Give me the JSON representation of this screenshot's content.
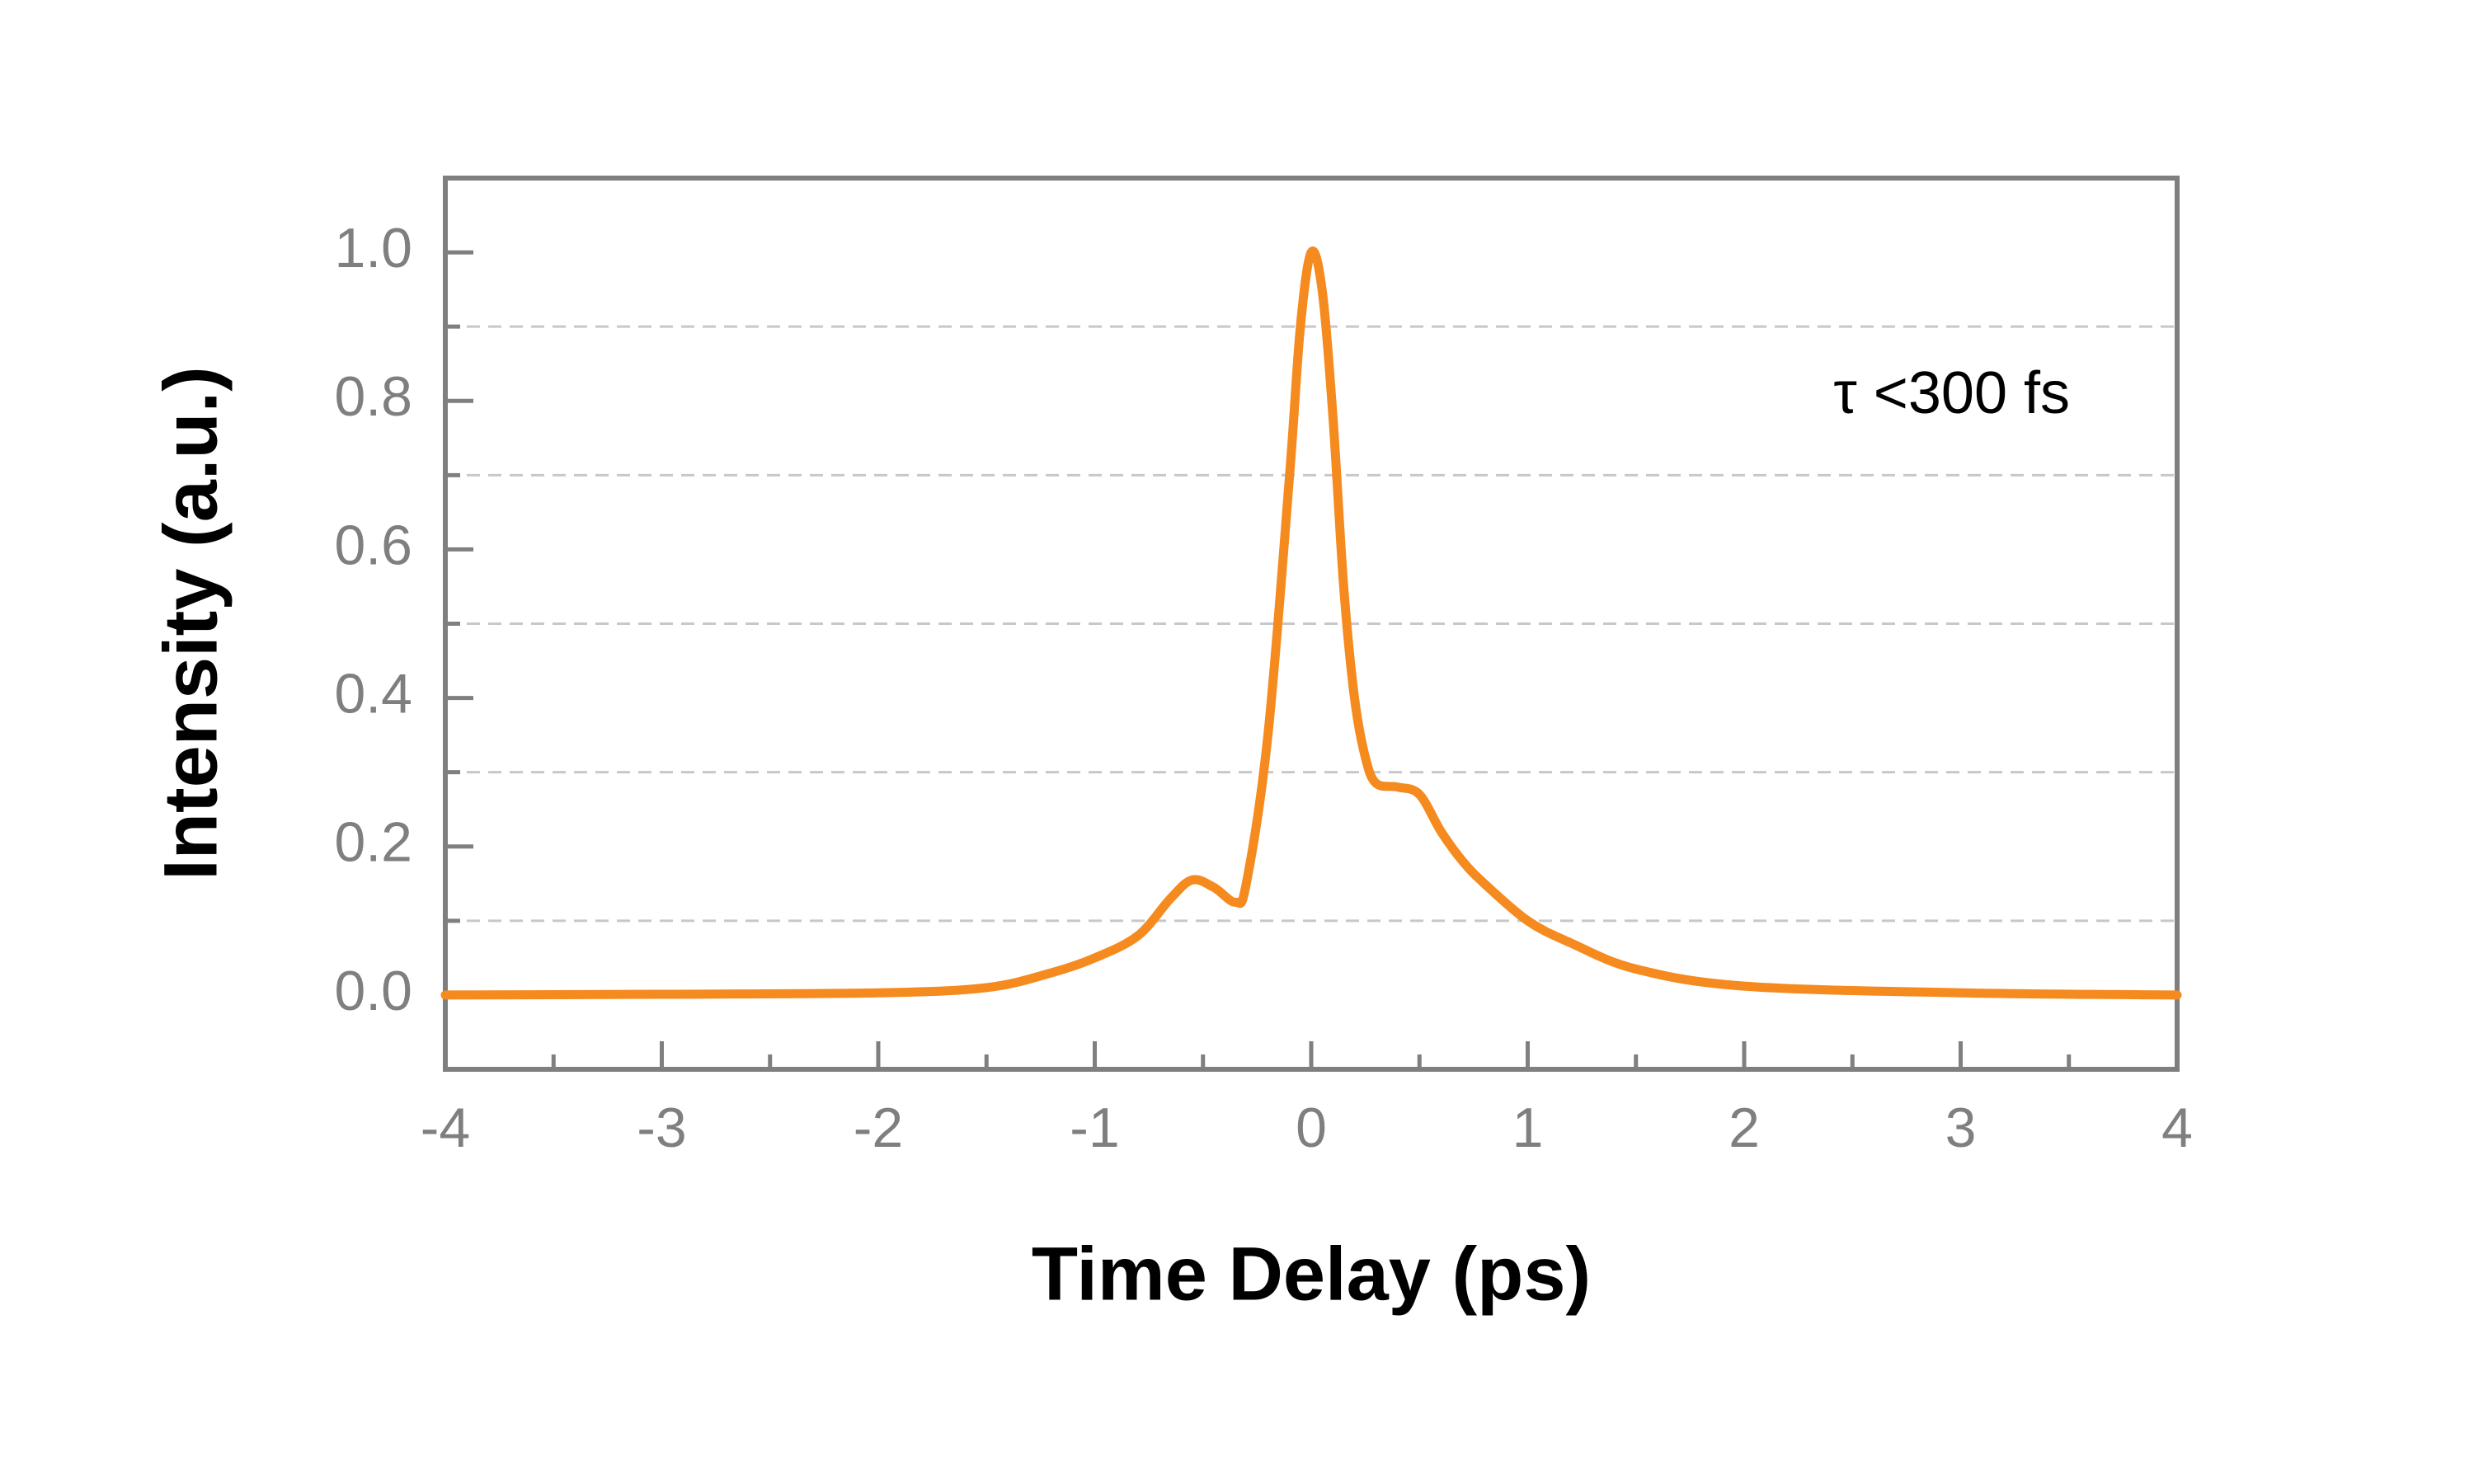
{
  "chart_data": {
    "type": "line",
    "x_label": "Time Delay (ps)",
    "y_label": "Intensity (a.u.)",
    "annotation": "τ <300 fs",
    "x": [
      -4,
      -3,
      -2,
      -1.5,
      -1.2,
      -1,
      -0.8,
      -0.65,
      -0.55,
      -0.45,
      -0.35,
      -0.3,
      -0.2,
      -0.1,
      -0.05,
      0,
      0.05,
      0.1,
      0.15,
      0.2,
      0.25,
      0.3,
      0.4,
      0.5,
      0.6,
      0.7,
      0.8,
      1,
      1.2,
      1.5,
      2,
      3,
      4
    ],
    "series": [
      {
        "color": "#f58a1f",
        "values": [
          0.0,
          0.001,
          0.003,
          0.01,
          0.03,
          0.05,
          0.08,
          0.13,
          0.155,
          0.145,
          0.125,
          0.15,
          0.35,
          0.7,
          0.9,
          1.0,
          0.95,
          0.78,
          0.55,
          0.4,
          0.32,
          0.285,
          0.28,
          0.27,
          0.22,
          0.18,
          0.15,
          0.1,
          0.07,
          0.035,
          0.012,
          0.003,
          0.0
        ]
      }
    ],
    "xlim": [
      -4,
      4
    ],
    "ylim": [
      -0.1,
      1.1
    ],
    "xticks": [
      -4,
      -3,
      -2,
      -1,
      0,
      1,
      2,
      3,
      4
    ],
    "xminorticks": [
      -3.5,
      -2.5,
      -1.5,
      -0.5,
      0.5,
      1.5,
      2.5,
      3.5
    ],
    "yticks": [
      {
        "value": 0,
        "label": "0.0"
      },
      {
        "value": 0.2,
        "label": "0.2"
      },
      {
        "value": 0.4,
        "label": "0.4"
      },
      {
        "value": 0.6,
        "label": "0.6"
      },
      {
        "value": 0.8,
        "label": "0.8"
      },
      {
        "value": 1,
        "label": "1.0"
      }
    ],
    "yminorticks": [
      0.1,
      0.3,
      0.5,
      0.7,
      0.9
    ],
    "grid": true
  }
}
